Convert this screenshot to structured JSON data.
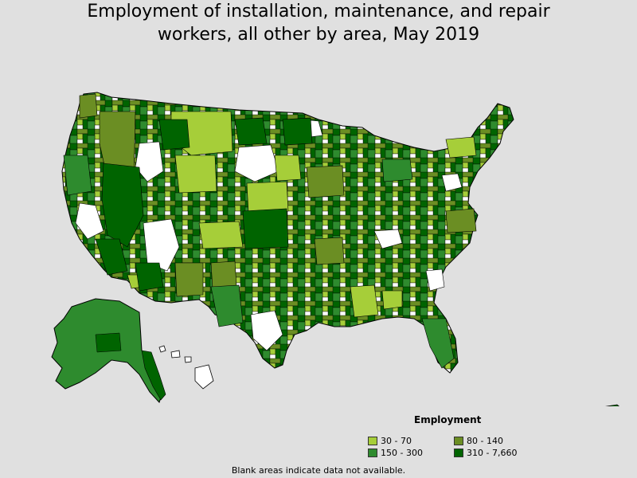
{
  "title_line1": "Employment of installation, maintenance, and repair",
  "title_line2": "workers, all other by area, May 2019",
  "legend": {
    "title": "Employment",
    "items": [
      {
        "label": "30 - 70",
        "color": "#a6ce39"
      },
      {
        "label": "80 - 140",
        "color": "#6b8e23"
      },
      {
        "label": "150 - 300",
        "color": "#2e8b2e"
      },
      {
        "label": "310 - 7,660",
        "color": "#006400"
      }
    ]
  },
  "note": "Blank areas indicate data not available.",
  "colors": {
    "background": "#e0e0e0",
    "no_data": "#ffffff",
    "border": "#000000"
  }
}
